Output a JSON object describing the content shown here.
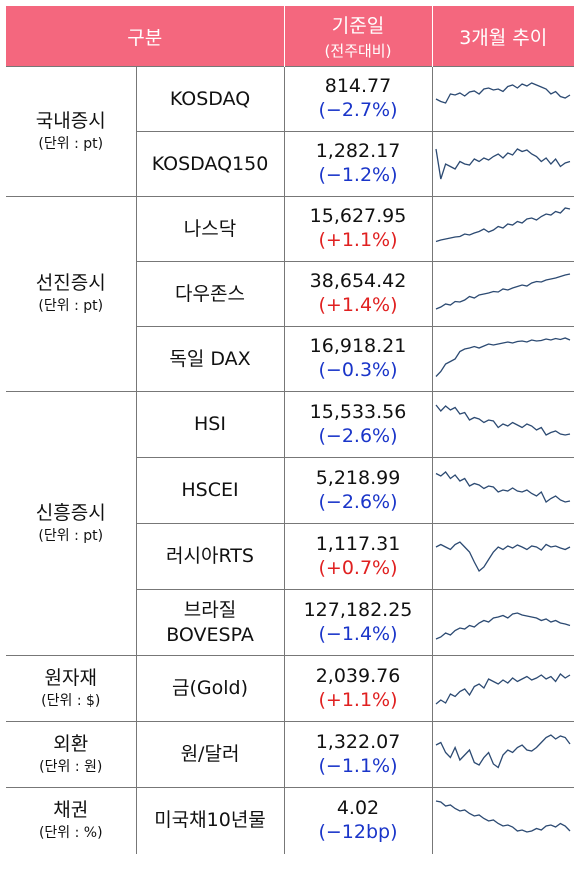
{
  "header": {
    "category": "구분",
    "value_line1": "기준일",
    "value_line2": "(전주대비)",
    "trend": "3개월 추이"
  },
  "sections": [
    {
      "name": "국내증시",
      "unit": "(단위 : pt)",
      "rows": [
        {
          "name": "KOSDAQ",
          "value": "814.77",
          "change": "(−2.7%)",
          "direction": "down",
          "trend_points": [
            50,
            55,
            58,
            40,
            42,
            38,
            44,
            36,
            34,
            40,
            30,
            28,
            32,
            30,
            35,
            25,
            22,
            28,
            20,
            24,
            18,
            22,
            26,
            30,
            40,
            35,
            45,
            48,
            42
          ]
        },
        {
          "name": "KOSDAQ150",
          "value": "1,282.17",
          "change": "(−1.2%)",
          "direction": "down",
          "trend_points": [
            20,
            80,
            50,
            55,
            60,
            45,
            50,
            52,
            40,
            45,
            38,
            42,
            35,
            30,
            38,
            28,
            32,
            20,
            25,
            22,
            30,
            35,
            45,
            38,
            50,
            40,
            55,
            48,
            45
          ]
        }
      ]
    },
    {
      "name": "선진증시",
      "unit": "(단위 : pt)",
      "rows": [
        {
          "name": "나스닥",
          "value": "15,627.95",
          "change": "(+1.1%)",
          "direction": "up",
          "trend_points": [
            75,
            72,
            70,
            68,
            66,
            65,
            60,
            62,
            58,
            55,
            50,
            56,
            52,
            45,
            48,
            40,
            42,
            35,
            38,
            30,
            28,
            32,
            25,
            20,
            22,
            15,
            18,
            8,
            10
          ]
        },
        {
          "name": "다우존스",
          "value": "38,654.42",
          "change": "(+1.4%)",
          "direction": "up",
          "trend_points": [
            80,
            76,
            70,
            72,
            65,
            66,
            62,
            55,
            58,
            52,
            50,
            48,
            45,
            46,
            40,
            42,
            38,
            35,
            32,
            34,
            28,
            25,
            26,
            22,
            20,
            18,
            15,
            12,
            10
          ]
        },
        {
          "name": "독일 DAX",
          "value": "16,918.21",
          "change": "(−0.3%)",
          "direction": "down",
          "trend_points": [
            85,
            75,
            60,
            55,
            50,
            35,
            30,
            28,
            25,
            28,
            24,
            20,
            22,
            20,
            18,
            16,
            18,
            15,
            14,
            16,
            12,
            14,
            13,
            10,
            12,
            9,
            11,
            8,
            12
          ]
        }
      ]
    },
    {
      "name": "신흥증시",
      "unit": "(단위 : pt)",
      "rows": [
        {
          "name": "HSI",
          "value": "15,533.56",
          "change": "(−2.6%)",
          "direction": "down",
          "trend_points": [
            10,
            22,
            12,
            20,
            15,
            28,
            25,
            40,
            35,
            38,
            45,
            40,
            42,
            55,
            48,
            52,
            45,
            50,
            55,
            48,
            52,
            60,
            55,
            70,
            65,
            62,
            68,
            70,
            68
          ]
        },
        {
          "name": "HSCEI",
          "value": "5,218.99",
          "change": "(−2.6%)",
          "direction": "down",
          "trend_points": [
            15,
            20,
            12,
            25,
            18,
            30,
            25,
            40,
            35,
            38,
            45,
            40,
            42,
            52,
            48,
            50,
            44,
            50,
            52,
            48,
            55,
            60,
            52,
            72,
            65,
            60,
            68,
            72,
            70
          ]
        },
        {
          "name": "러시아RTS",
          "value": "1,117.31",
          "change": "(+0.7%)",
          "direction": "up",
          "trend_points": [
            30,
            25,
            30,
            35,
            25,
            20,
            30,
            40,
            60,
            78,
            70,
            55,
            40,
            30,
            35,
            28,
            32,
            26,
            30,
            35,
            28,
            30,
            36,
            25,
            30,
            28,
            32,
            35,
            30
          ]
        },
        {
          "name": "브라질\nBOVESPA",
          "value": "127,182.25",
          "change": "(−1.4%)",
          "direction": "down",
          "trend_points": [
            82,
            78,
            70,
            74,
            65,
            60,
            62,
            55,
            58,
            50,
            45,
            48,
            40,
            38,
            35,
            40,
            32,
            30,
            34,
            36,
            38,
            40,
            45,
            42,
            48,
            45,
            50,
            52,
            55
          ]
        }
      ]
    },
    {
      "name": "원자재",
      "unit": "(단위 : $)",
      "rows": [
        {
          "name": "금(Gold)",
          "value": "2,039.76",
          "change": "(+1.1%)",
          "direction": "up",
          "trend_points": [
            80,
            72,
            78,
            60,
            65,
            55,
            50,
            62,
            45,
            40,
            48,
            30,
            35,
            40,
            32,
            38,
            28,
            35,
            30,
            25,
            32,
            28,
            22,
            30,
            25,
            35,
            20,
            28,
            22
          ]
        }
      ]
    },
    {
      "name": "외환",
      "unit": "(단위 : 원)",
      "rows": [
        {
          "name": "원/달러",
          "value": "1,322.07",
          "change": "(−1.1%)",
          "direction": "down",
          "trend_points": [
            30,
            25,
            45,
            55,
            35,
            60,
            50,
            40,
            65,
            70,
            55,
            45,
            68,
            75,
            50,
            40,
            45,
            35,
            30,
            40,
            42,
            35,
            25,
            15,
            10,
            18,
            12,
            15,
            28
          ]
        }
      ]
    },
    {
      "name": "채권",
      "unit": "(단위 : %)",
      "rows": [
        {
          "name": "미국채10년물",
          "value": "4.02",
          "change": "(−12bp)",
          "direction": "down",
          "trend_points": [
            10,
            12,
            20,
            18,
            25,
            30,
            28,
            35,
            40,
            38,
            45,
            50,
            48,
            55,
            60,
            58,
            62,
            70,
            68,
            72,
            70,
            65,
            68,
            60,
            58,
            62,
            55,
            60,
            70
          ]
        }
      ]
    }
  ],
  "colors": {
    "header_bg": "#f4677e",
    "up": "#e02020",
    "down": "#1a35c9",
    "sparkline": "#2c4a72"
  }
}
